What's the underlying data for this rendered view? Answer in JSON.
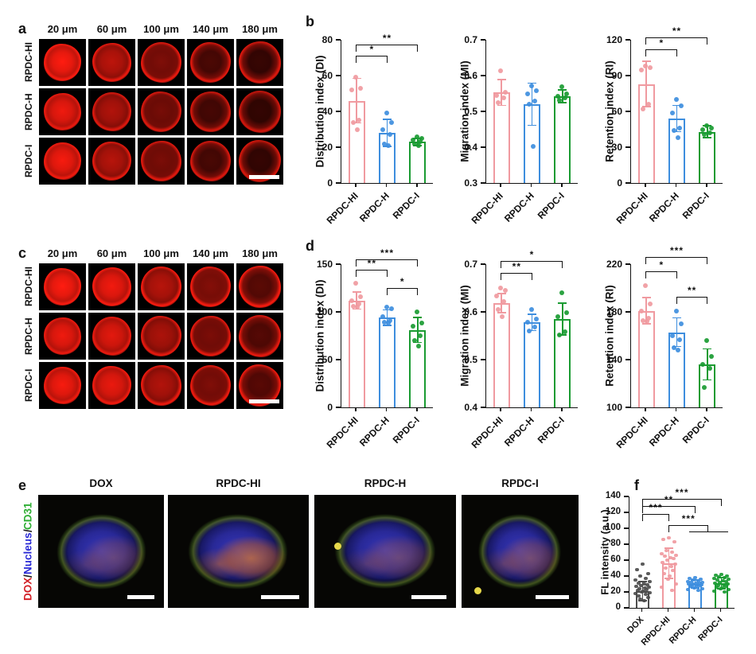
{
  "figure": {
    "bg": "#ffffff"
  },
  "letters": {
    "a": "a",
    "b": "b",
    "c": "c",
    "d": "d",
    "e": "e",
    "f": "f"
  },
  "colors": {
    "pink": "#f09aa0",
    "blue": "#3e8ede",
    "green": "#1a9b32",
    "gray": "#4d4d4d",
    "micro_red": "#ff2012",
    "axis": "#111111"
  },
  "panel_a": {
    "col_labels": [
      "20 μm",
      "60 μm",
      "100 μm",
      "140 μm",
      "180 μm"
    ],
    "row_labels": [
      "RPDC-HI",
      "RPDC-H",
      "RPDC-I"
    ]
  },
  "panel_c": {
    "col_labels": [
      "20 μm",
      "60 μm",
      "100 μm",
      "140 μm",
      "180 μm"
    ],
    "row_labels": [
      "RPDC-HI",
      "RPDC-H",
      "RPDC-I"
    ]
  },
  "panel_e": {
    "col_labels": [
      "DOX",
      "RPDC-HI",
      "RPDC-H",
      "RPDC-I"
    ],
    "legend": [
      {
        "text": "DOX",
        "color": "#d21f26"
      },
      {
        "text": "/",
        "color": "#1a1a1a"
      },
      {
        "text": "Nucleus",
        "color": "#2a2ad6"
      },
      {
        "text": "/",
        "color": "#1a1a1a"
      },
      {
        "text": "CD31",
        "color": "#2fae34"
      }
    ]
  },
  "chart_data": [
    {
      "panel": "b",
      "type": "bar",
      "ylabel": "Distribution index (DI)",
      "ymin": 0,
      "ymax": 80,
      "yticks": [
        "0",
        "20",
        "40",
        "60",
        "80"
      ],
      "categories": [
        "RPDC-HI",
        "RPDC-H",
        "RPDC-I"
      ],
      "colors": [
        "#f09aa0",
        "#3e8ede",
        "#1a9b32"
      ],
      "values": [
        46,
        28,
        23
      ],
      "err": [
        12.5,
        7.5,
        2
      ],
      "points": [
        [
          59,
          53,
          52,
          35,
          34,
          30
        ],
        [
          39,
          34,
          30,
          27,
          22,
          21
        ],
        [
          26,
          25,
          24,
          23,
          22,
          21
        ]
      ],
      "sig": [
        {
          "from": 0,
          "to": 1,
          "label": "*",
          "y": 71
        },
        {
          "from": 0,
          "to": 2,
          "label": "**",
          "y": 77.5
        }
      ]
    },
    {
      "panel": "b",
      "type": "bar",
      "ylabel": "Migration index (MI)",
      "ymin": 0.3,
      "ymax": 0.7,
      "yticks": [
        "0.3",
        "0.4",
        "0.5",
        "0.6",
        "0.7"
      ],
      "categories": [
        "RPDC-HI",
        "RPDC-H",
        "RPDC-I"
      ],
      "colors": [
        "#f09aa0",
        "#3e8ede",
        "#1a9b32"
      ],
      "values": [
        0.553,
        0.52,
        0.542
      ],
      "err": [
        0.036,
        0.059,
        0.018
      ],
      "points": [
        [
          0.613,
          0.553,
          0.545,
          0.537,
          0.525
        ],
        [
          0.572,
          0.558,
          0.548,
          0.53,
          0.52,
          0.403
        ],
        [
          0.568,
          0.548,
          0.543,
          0.538,
          0.532
        ]
      ],
      "sig": []
    },
    {
      "panel": "b",
      "type": "bar",
      "ylabel": "Retention index (RI)",
      "ymin": 0,
      "ymax": 120,
      "yticks": [
        "0",
        "30",
        "60",
        "90",
        "120"
      ],
      "categories": [
        "RPDC-HI",
        "RPDC-H",
        "RPDC-I"
      ],
      "colors": [
        "#f09aa0",
        "#3e8ede",
        "#1a9b32"
      ],
      "values": [
        83,
        54,
        43
      ],
      "err": [
        19,
        11,
        5
      ],
      "points": [
        [
          98,
          97,
          95,
          66,
          62
        ],
        [
          70,
          65,
          59,
          46,
          44,
          38
        ],
        [
          48,
          46,
          45,
          42,
          41
        ]
      ],
      "sig": [
        {
          "from": 0,
          "to": 1,
          "label": "*",
          "y": 112
        },
        {
          "from": 0,
          "to": 2,
          "label": "**",
          "y": 122
        }
      ]
    },
    {
      "panel": "d",
      "type": "bar",
      "ylabel": "Distribution index (DI)",
      "ymin": 0,
      "ymax": 150,
      "yticks": [
        "0",
        "50",
        "100",
        "150"
      ],
      "categories": [
        "RPDC-HI",
        "RPDC-H",
        "RPDC-I"
      ],
      "colors": [
        "#f09aa0",
        "#3e8ede",
        "#1a9b32"
      ],
      "values": [
        112,
        94,
        81
      ],
      "err": [
        9,
        8,
        13
      ],
      "points": [
        [
          130,
          116,
          112,
          108,
          106,
          105
        ],
        [
          105,
          103,
          95,
          91,
          89,
          88
        ],
        [
          100,
          88,
          85,
          75,
          70,
          64
        ]
      ],
      "sig": [
        {
          "from": 1,
          "to": 2,
          "label": "*",
          "y": 125
        },
        {
          "from": 0,
          "to": 1,
          "label": "**",
          "y": 144
        },
        {
          "from": 0,
          "to": 2,
          "label": "***",
          "y": 155
        }
      ]
    },
    {
      "panel": "d",
      "type": "bar",
      "ylabel": "Migration index (MI)",
      "ymin": 0.4,
      "ymax": 0.7,
      "yticks": [
        "0.4",
        "0.5",
        "0.6",
        "0.7"
      ],
      "categories": [
        "RPDC-HI",
        "RPDC-H",
        "RPDC-I"
      ],
      "colors": [
        "#f09aa0",
        "#3e8ede",
        "#1a9b32"
      ],
      "values": [
        0.618,
        0.578,
        0.585
      ],
      "err": [
        0.02,
        0.017,
        0.033
      ],
      "points": [
        [
          0.65,
          0.645,
          0.633,
          0.622,
          0.605,
          0.59
        ],
        [
          0.605,
          0.585,
          0.578,
          0.568,
          0.56
        ],
        [
          0.64,
          0.598,
          0.59,
          0.558,
          0.552
        ]
      ],
      "sig": [
        {
          "from": 0,
          "to": 1,
          "label": "**",
          "y": 0.682
        },
        {
          "from": 0,
          "to": 2,
          "label": "*",
          "y": 0.706
        }
      ]
    },
    {
      "panel": "d",
      "type": "bar",
      "ylabel": "Retention index (RI)",
      "ymin": 100,
      "ymax": 220,
      "yticks": [
        "100",
        "140",
        "180",
        "220"
      ],
      "categories": [
        "RPDC-HI",
        "RPDC-H",
        "RPDC-I"
      ],
      "colors": [
        "#f09aa0",
        "#3e8ede",
        "#1a9b32"
      ],
      "values": [
        181,
        163,
        136
      ],
      "err": [
        11,
        12,
        13
      ],
      "points": [
        [
          202,
          187,
          181,
          175,
          173,
          172
        ],
        [
          181,
          170,
          160,
          157,
          150,
          148
        ],
        [
          156,
          143,
          136,
          133,
          117
        ]
      ],
      "sig": [
        {
          "from": 1,
          "to": 2,
          "label": "**",
          "y": 193
        },
        {
          "from": 0,
          "to": 1,
          "label": "*",
          "y": 214
        },
        {
          "from": 0,
          "to": 2,
          "label": "***",
          "y": 226
        }
      ]
    },
    {
      "panel": "f",
      "type": "bar",
      "ylabel": "FL intensity (a.u.)",
      "ymin": 0,
      "ymax": 140,
      "yticks": [
        "0",
        "20",
        "40",
        "60",
        "80",
        "100",
        "120",
        "140"
      ],
      "categories": [
        "DOX",
        "RPDC-HI",
        "RPDC-H",
        "RPDC-I"
      ],
      "colors": [
        "#4d4d4d",
        "#f09aa0",
        "#3e8ede",
        "#1a9b32"
      ],
      "values": [
        21,
        56,
        30,
        31
      ],
      "err": [
        12,
        19,
        5,
        7
      ],
      "points": [
        [
          55,
          48,
          43,
          40,
          37,
          35,
          33,
          31,
          30,
          29,
          28,
          27,
          26,
          25,
          24,
          23,
          22,
          21,
          20,
          19,
          18,
          17,
          15,
          13,
          11,
          9
        ],
        [
          88,
          86,
          83,
          72,
          70,
          68,
          66,
          65,
          63,
          62,
          60,
          57,
          55,
          52,
          50,
          47,
          43,
          40,
          36,
          30,
          26,
          22
        ],
        [
          38,
          37,
          36,
          35,
          34,
          33,
          32,
          32,
          31,
          31,
          30,
          30,
          29,
          29,
          28,
          28,
          27,
          26,
          25,
          24,
          23,
          22
        ],
        [
          42,
          41,
          40,
          39,
          38,
          37,
          36,
          35,
          34,
          33,
          32,
          31,
          30,
          29,
          28,
          27,
          26,
          25,
          24,
          23,
          21,
          20
        ]
      ],
      "sig": [
        {
          "from": 0,
          "to": 1,
          "label": "***",
          "y": 118
        },
        {
          "from": 0,
          "to": 2,
          "label": "**",
          "y": 128
        },
        {
          "from": 0,
          "to": 3,
          "label": "***",
          "y": 137
        },
        {
          "from": 1,
          "to": 3,
          "label": "***",
          "y": 104,
          "group": [
            2,
            3
          ],
          "group_y": 96
        }
      ]
    }
  ]
}
